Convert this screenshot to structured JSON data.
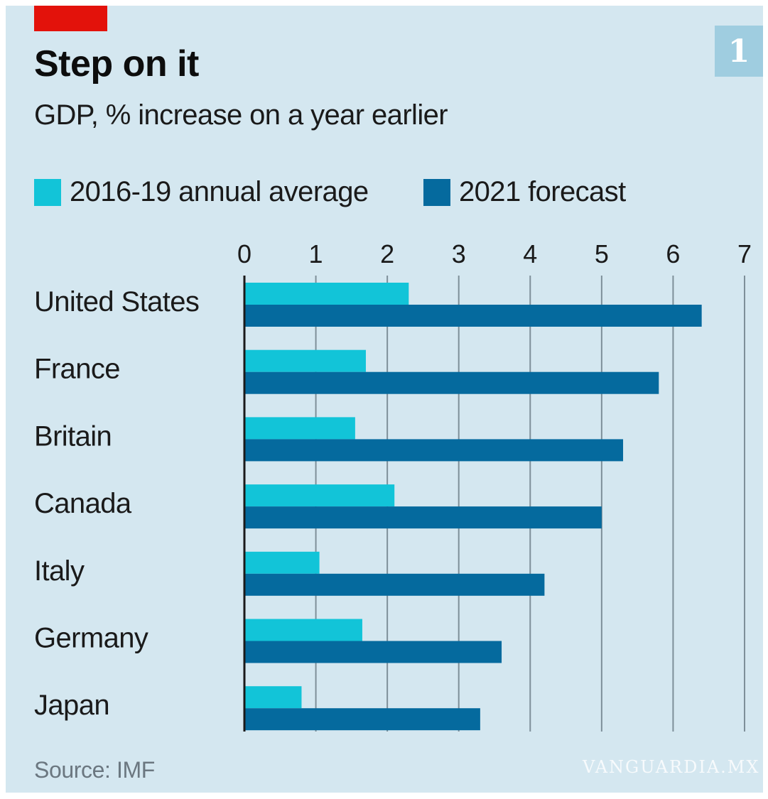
{
  "header": {
    "title": "Step on it",
    "subtitle": "GDP, % increase on a year earlier",
    "badge": "1"
  },
  "footer": {
    "source": "Source: IMF",
    "watermark": "VANGUARDIA.MX"
  },
  "colors": {
    "background": "#d4e7f0",
    "accent": "#e3120b",
    "series_light": "#12c4d8",
    "series_dark": "#056a9e",
    "grid": "#7e8f99",
    "axis": "#1a1a1a"
  },
  "chart_data": {
    "type": "bar",
    "orientation": "horizontal",
    "title": "Step on it",
    "subtitle": "GDP, % increase on a year earlier",
    "categories": [
      "United States",
      "France",
      "Britain",
      "Canada",
      "Italy",
      "Germany",
      "Japan"
    ],
    "series": [
      {
        "name": "2016-19 annual average",
        "color": "#12c4d8",
        "values": [
          2.3,
          1.7,
          1.55,
          2.1,
          1.05,
          1.65,
          0.8
        ]
      },
      {
        "name": "2021 forecast",
        "color": "#056a9e",
        "values": [
          6.4,
          5.8,
          5.3,
          5.0,
          4.2,
          3.6,
          3.3
        ]
      }
    ],
    "xlim": [
      0,
      7
    ],
    "xticks": [
      0,
      1,
      2,
      3,
      4,
      5,
      6,
      7
    ],
    "xlabel": "",
    "ylabel": "",
    "grid": true,
    "legend_position": "top",
    "source": "Source: IMF"
  }
}
